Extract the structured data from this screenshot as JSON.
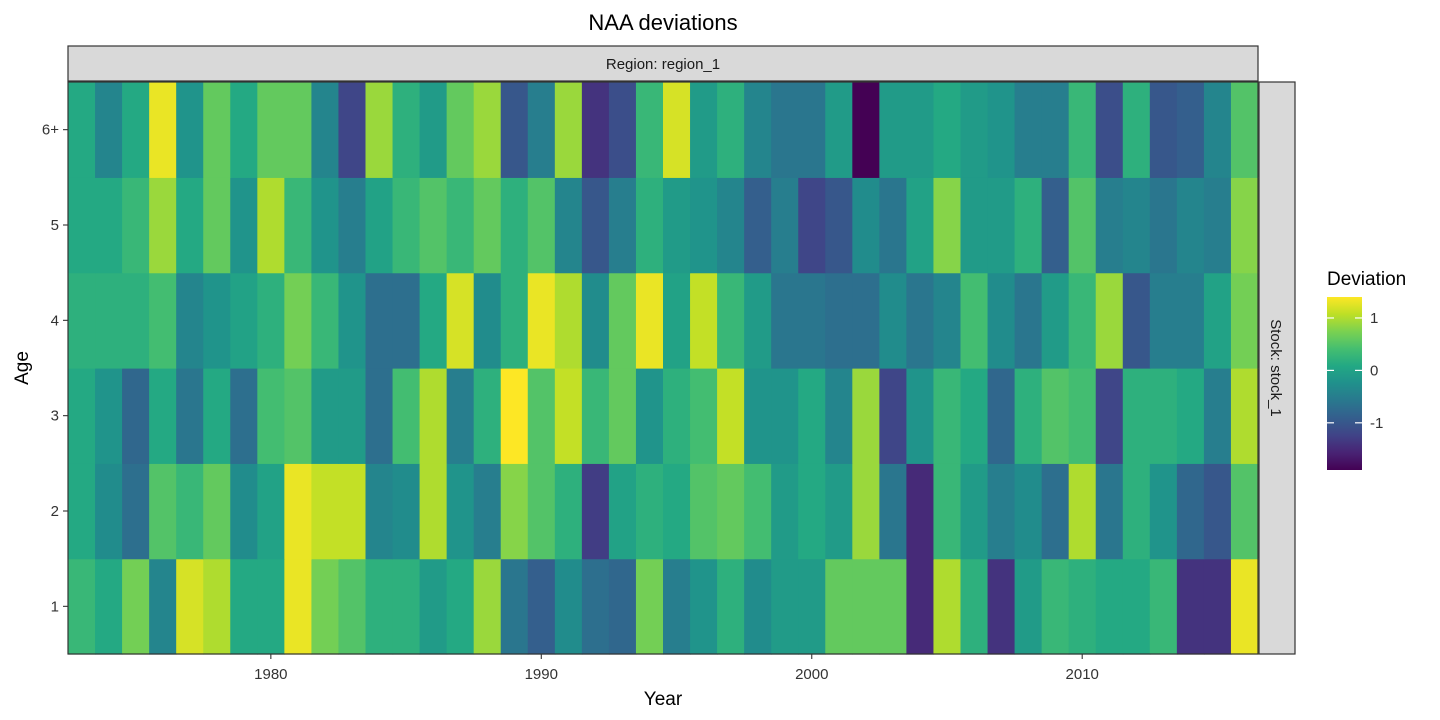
{
  "chart_data": {
    "type": "heatmap",
    "title": "NAA deviations",
    "xlabel": "Year",
    "ylabel": "Age",
    "facet_top": "Region: region_1",
    "facet_right": "Stock: stock_1",
    "x": [
      1973,
      1974,
      1975,
      1976,
      1977,
      1978,
      1979,
      1980,
      1981,
      1982,
      1983,
      1984,
      1985,
      1986,
      1987,
      1988,
      1989,
      1990,
      1991,
      1992,
      1993,
      1994,
      1995,
      1996,
      1997,
      1998,
      1999,
      2000,
      2001,
      2002,
      2003,
      2004,
      2005,
      2006,
      2007,
      2008,
      2009,
      2010,
      2011,
      2012,
      2013,
      2014,
      2015,
      2016
    ],
    "xlim": [
      1972.5,
      2016.5
    ],
    "x_ticks": [
      1980,
      1990,
      2000,
      2010
    ],
    "y_categories": [
      "1",
      "2",
      "3",
      "4",
      "5",
      "6+"
    ],
    "values": [
      [
        0.3,
        0.1,
        0.7,
        -0.4,
        1.2,
        1.0,
        0.1,
        0.1,
        1.3,
        0.7,
        0.5,
        0.2,
        0.2,
        -0.1,
        0.1,
        0.9,
        -0.6,
        -0.9,
        -0.3,
        -0.7,
        -0.8,
        0.7,
        -0.5,
        -0.2,
        0.2,
        -0.3,
        -0.1,
        -0.1,
        0.6,
        0.6,
        0.6,
        -1.5,
        1.0,
        0.2,
        -1.4,
        -0.1,
        0.3,
        0.2,
        0.1,
        0.1,
        0.3,
        -1.4,
        -1.4,
        1.3
      ],
      [
        0.1,
        -0.3,
        -0.7,
        0.5,
        0.3,
        0.6,
        -0.3,
        0.0,
        1.3,
        1.1,
        1.1,
        -0.4,
        -0.3,
        1.0,
        -0.2,
        -0.5,
        0.8,
        0.5,
        0.2,
        -1.3,
        0.0,
        0.2,
        0.1,
        0.5,
        0.6,
        0.4,
        -0.1,
        0.1,
        -0.1,
        0.9,
        -0.6,
        -1.5,
        0.3,
        -0.1,
        -0.5,
        -0.3,
        -0.7,
        1.0,
        -0.6,
        0.2,
        -0.2,
        -0.8,
        -1.0,
        0.5
      ],
      [
        0.1,
        -0.2,
        -0.8,
        0.1,
        -0.6,
        0.1,
        -0.7,
        0.4,
        0.5,
        -0.1,
        -0.1,
        -0.7,
        0.4,
        1.0,
        -0.5,
        0.2,
        1.4,
        0.5,
        1.1,
        0.3,
        0.6,
        -0.2,
        0.2,
        0.4,
        1.1,
        -0.2,
        -0.2,
        0.1,
        -0.4,
        0.9,
        -1.2,
        -0.2,
        0.3,
        0.1,
        -0.8,
        0.2,
        0.5,
        0.4,
        -1.2,
        0.2,
        0.2,
        0.1,
        -0.5,
        1.0
      ],
      [
        0.2,
        0.2,
        0.2,
        0.4,
        -0.4,
        -0.2,
        0.0,
        0.2,
        0.7,
        0.3,
        -0.2,
        -0.7,
        -0.7,
        0.1,
        1.2,
        -0.3,
        0.2,
        1.3,
        1.0,
        -0.3,
        0.6,
        1.3,
        0.0,
        1.1,
        0.3,
        -0.1,
        -0.6,
        -0.6,
        -0.7,
        -0.7,
        -0.3,
        -0.6,
        -0.4,
        0.4,
        -0.3,
        -0.6,
        -0.1,
        0.3,
        0.9,
        -1.0,
        -0.5,
        -0.5,
        0.0,
        0.7
      ],
      [
        0.1,
        0.1,
        0.3,
        0.9,
        0.1,
        0.6,
        -0.2,
        1.0,
        0.3,
        -0.2,
        -0.5,
        0.0,
        0.3,
        0.5,
        0.3,
        0.6,
        0.2,
        0.5,
        -0.4,
        -1.0,
        -0.5,
        0.2,
        -0.1,
        -0.2,
        -0.4,
        -0.9,
        -0.5,
        -1.2,
        -1.0,
        -0.3,
        -0.6,
        0.0,
        0.8,
        -0.1,
        -0.1,
        0.2,
        -0.9,
        0.5,
        -0.5,
        -0.4,
        -0.6,
        -0.4,
        -0.5,
        0.8
      ],
      [
        0.1,
        -0.4,
        0.1,
        1.3,
        -0.2,
        0.6,
        0.1,
        0.6,
        0.6,
        -0.4,
        -1.2,
        0.9,
        0.2,
        -0.1,
        0.6,
        0.9,
        -1.0,
        -0.5,
        0.9,
        -1.4,
        -1.1,
        0.3,
        1.2,
        -0.1,
        0.2,
        -0.4,
        -0.6,
        -0.6,
        -0.1,
        -1.9,
        -0.1,
        -0.1,
        0.1,
        -0.1,
        -0.2,
        -0.5,
        -0.5,
        0.3,
        -1.1,
        0.2,
        -1.0,
        -0.9,
        -0.4,
        0.5
      ]
    ],
    "legend": {
      "title": "Deviation",
      "ticks": [
        1,
        0,
        -1
      ],
      "tick_labels": [
        "1",
        "0",
        "-1"
      ],
      "range": [
        -1.9,
        1.4
      ],
      "colormap": "viridis"
    },
    "grid": false
  }
}
